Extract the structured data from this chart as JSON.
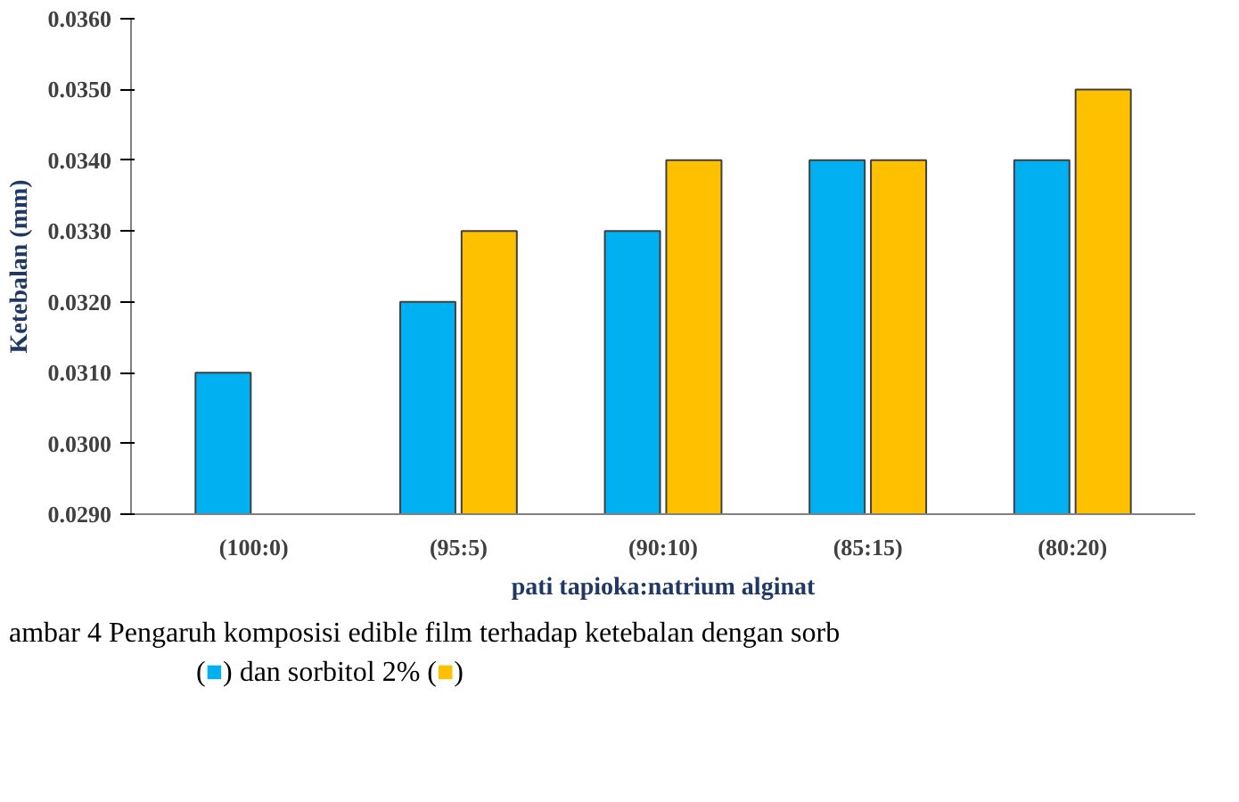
{
  "chart_data": {
    "type": "bar",
    "xlabel": "pati tapioka:natrium alginat",
    "ylabel": "Ketebalan (mm)",
    "categories": [
      "(100:0)",
      "(95:5)",
      "(90:10)",
      "(85:15)",
      "(80:20)"
    ],
    "series": [
      {
        "color": "#00b0f0",
        "values": [
          0.031,
          0.032,
          0.033,
          0.034,
          0.034
        ]
      },
      {
        "color": "#ffc000",
        "values": [
          null,
          0.033,
          0.034,
          0.034,
          0.035
        ]
      }
    ],
    "ylim": [
      0.029,
      0.036
    ],
    "yticks": [
      {
        "value": 0.029,
        "label": "0.0290"
      },
      {
        "value": 0.03,
        "label": "0.0300"
      },
      {
        "value": 0.031,
        "label": "0.0310"
      },
      {
        "value": 0.032,
        "label": "0.0320"
      },
      {
        "value": 0.033,
        "label": "0.0330"
      },
      {
        "value": 0.034,
        "label": "0.0340"
      },
      {
        "value": 0.035,
        "label": "0.0350"
      },
      {
        "value": 0.036,
        "label": "0.0360"
      }
    ],
    "grid": false,
    "annotations": [
      "ambar 4  Pengaruh komposisi edible film terhadap ketebalan dengan sorb",
      "(■) dan sorbitol 2% (■)"
    ]
  }
}
